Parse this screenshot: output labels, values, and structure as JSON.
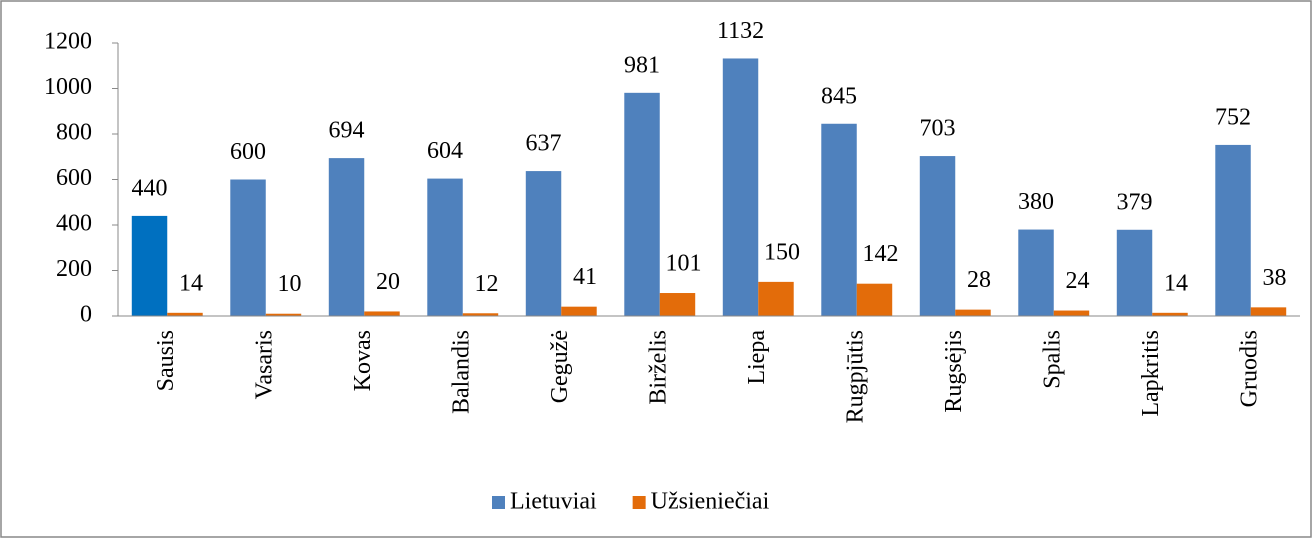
{
  "chart_data": {
    "type": "bar",
    "categories": [
      "Sausis",
      "Vasaris",
      "Kovas",
      "Balandis",
      "Gegužė",
      "Birželis",
      "Liepa",
      "Rugpjūtis",
      "Rugsėjis",
      "Spalis",
      "Lapkritis",
      "Gruodis"
    ],
    "series": [
      {
        "name": "Lietuviai",
        "color": "#4f81bd",
        "colors": [
          "#0070c0",
          "#4f81bd",
          "#4f81bd",
          "#4f81bd",
          "#4f81bd",
          "#4f81bd",
          "#4f81bd",
          "#4f81bd",
          "#4f81bd",
          "#4f81bd",
          "#4f81bd",
          "#4f81bd"
        ],
        "values": [
          440,
          600,
          694,
          604,
          637,
          981,
          1132,
          845,
          703,
          380,
          379,
          752
        ]
      },
      {
        "name": "Užsieniečiai",
        "color": "#e36c0a",
        "values": [
          14,
          10,
          20,
          12,
          41,
          101,
          150,
          142,
          28,
          24,
          14,
          38
        ]
      }
    ],
    "ylim": [
      0,
      1200
    ],
    "yticks": [
      0,
      200,
      400,
      600,
      800,
      1000,
      1200
    ],
    "grid": false,
    "legend": "bottom"
  }
}
